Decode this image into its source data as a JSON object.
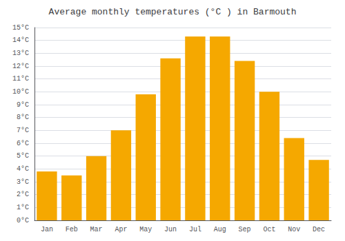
{
  "chart_data": {
    "type": "bar",
    "title": "Average monthly temperatures (°C ) in Barmouth",
    "categories": [
      "Jan",
      "Feb",
      "Mar",
      "Apr",
      "May",
      "Jun",
      "Jul",
      "Aug",
      "Sep",
      "Oct",
      "Nov",
      "Dec"
    ],
    "values": [
      3.8,
      3.5,
      5.0,
      7.0,
      9.8,
      12.6,
      14.3,
      14.3,
      12.4,
      10.0,
      6.4,
      4.7
    ],
    "color": "#F5A800",
    "ylim": [
      0,
      15
    ],
    "yticks": [
      {
        "value": 0,
        "label": "0°C"
      },
      {
        "value": 1,
        "label": "1°C"
      },
      {
        "value": 2,
        "label": "2°C"
      },
      {
        "value": 3,
        "label": "3°C"
      },
      {
        "value": 4,
        "label": "4°C"
      },
      {
        "value": 5,
        "label": "5°C"
      },
      {
        "value": 6,
        "label": "6°C"
      },
      {
        "value": 7,
        "label": "7°C"
      },
      {
        "value": 8,
        "label": "8°C"
      },
      {
        "value": 9,
        "label": "9°C"
      },
      {
        "value": 10,
        "label": "10°C"
      },
      {
        "value": 11,
        "label": "11°C"
      },
      {
        "value": 12,
        "label": "12°C"
      },
      {
        "value": 13,
        "label": "13°C"
      },
      {
        "value": 14,
        "label": "14°C"
      },
      {
        "value": 15,
        "label": "15°C"
      }
    ],
    "grid": true
  }
}
